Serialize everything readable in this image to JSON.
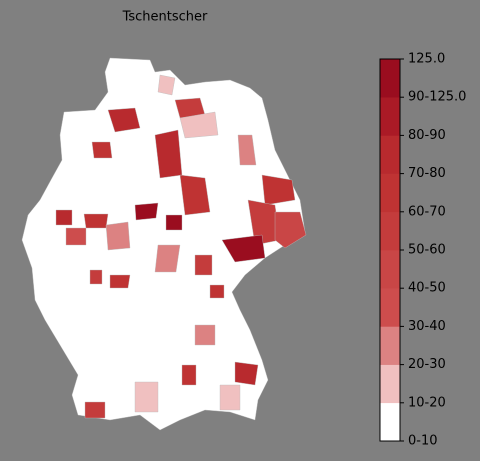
{
  "title": "Tschentscher",
  "colorbar": {
    "ticks": [
      "0-10",
      "10-20",
      "20-30",
      "30-40",
      "40-50",
      "50-60",
      "60-70",
      "70-80",
      "80-90",
      "90-125.0",
      "125.0"
    ],
    "colors": [
      "#ffffff",
      "#f0c0c0",
      "#dc8282",
      "#cd4d4d",
      "#c94646",
      "#c43c3c",
      "#bf3333",
      "#b82a2e",
      "#aa1a26",
      "#9a0d1f"
    ]
  }
}
